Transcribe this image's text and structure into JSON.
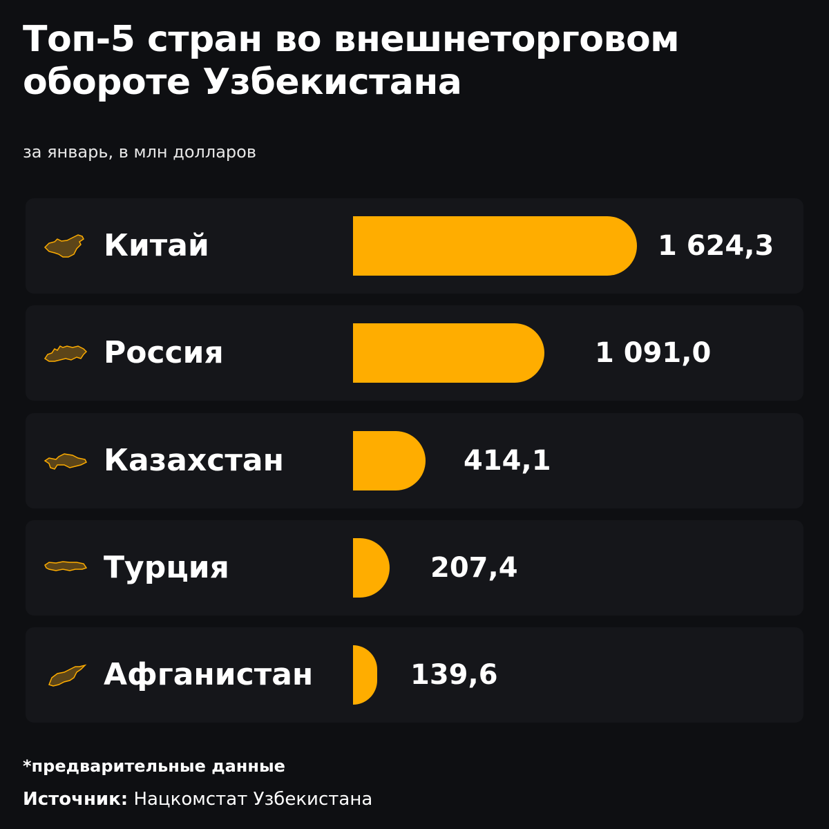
{
  "header": {
    "title": "Топ-5 стран во внешнеторговом обороте Узбекистана",
    "subtitle": "за январь, в млн долларов"
  },
  "colors": {
    "background": "#0e0f12",
    "row": "#15161a",
    "bar": "#ffad00",
    "map_fill": "#5c4519",
    "map_stroke": "#ffad00"
  },
  "rows": [
    {
      "country": "Китай",
      "value": "1 624,3",
      "icon": "china-map-icon"
    },
    {
      "country": "Россия",
      "value": "1 091,0",
      "icon": "russia-map-icon"
    },
    {
      "country": "Казахстан",
      "value": "414,1",
      "icon": "kazakhstan-map-icon"
    },
    {
      "country": "Турция",
      "value": "207,4",
      "icon": "turkey-map-icon"
    },
    {
      "country": "Афганистан",
      "value": "139,6",
      "icon": "afghanistan-map-icon"
    }
  ],
  "footer": {
    "note": "*предварительные данные",
    "source_label": "Источник:",
    "source_value": " Нацкомстат Узбекистана"
  },
  "chart_data": {
    "type": "bar",
    "orientation": "horizontal",
    "title": "Топ-5 стран во внешнеторговом обороте Узбекистана",
    "subtitle": "за январь, в млн долларов",
    "categories": [
      "Китай",
      "Россия",
      "Казахстан",
      "Турция",
      "Афганистан"
    ],
    "values": [
      1624.3,
      1091.0,
      414.1,
      207.4,
      139.6
    ],
    "xlabel": "",
    "ylabel": "",
    "unit": "млн долларов",
    "grid": false,
    "legend": null,
    "annotations": [
      "*предварительные данные",
      "Источник: Нацкомстат Узбекистана"
    ]
  }
}
